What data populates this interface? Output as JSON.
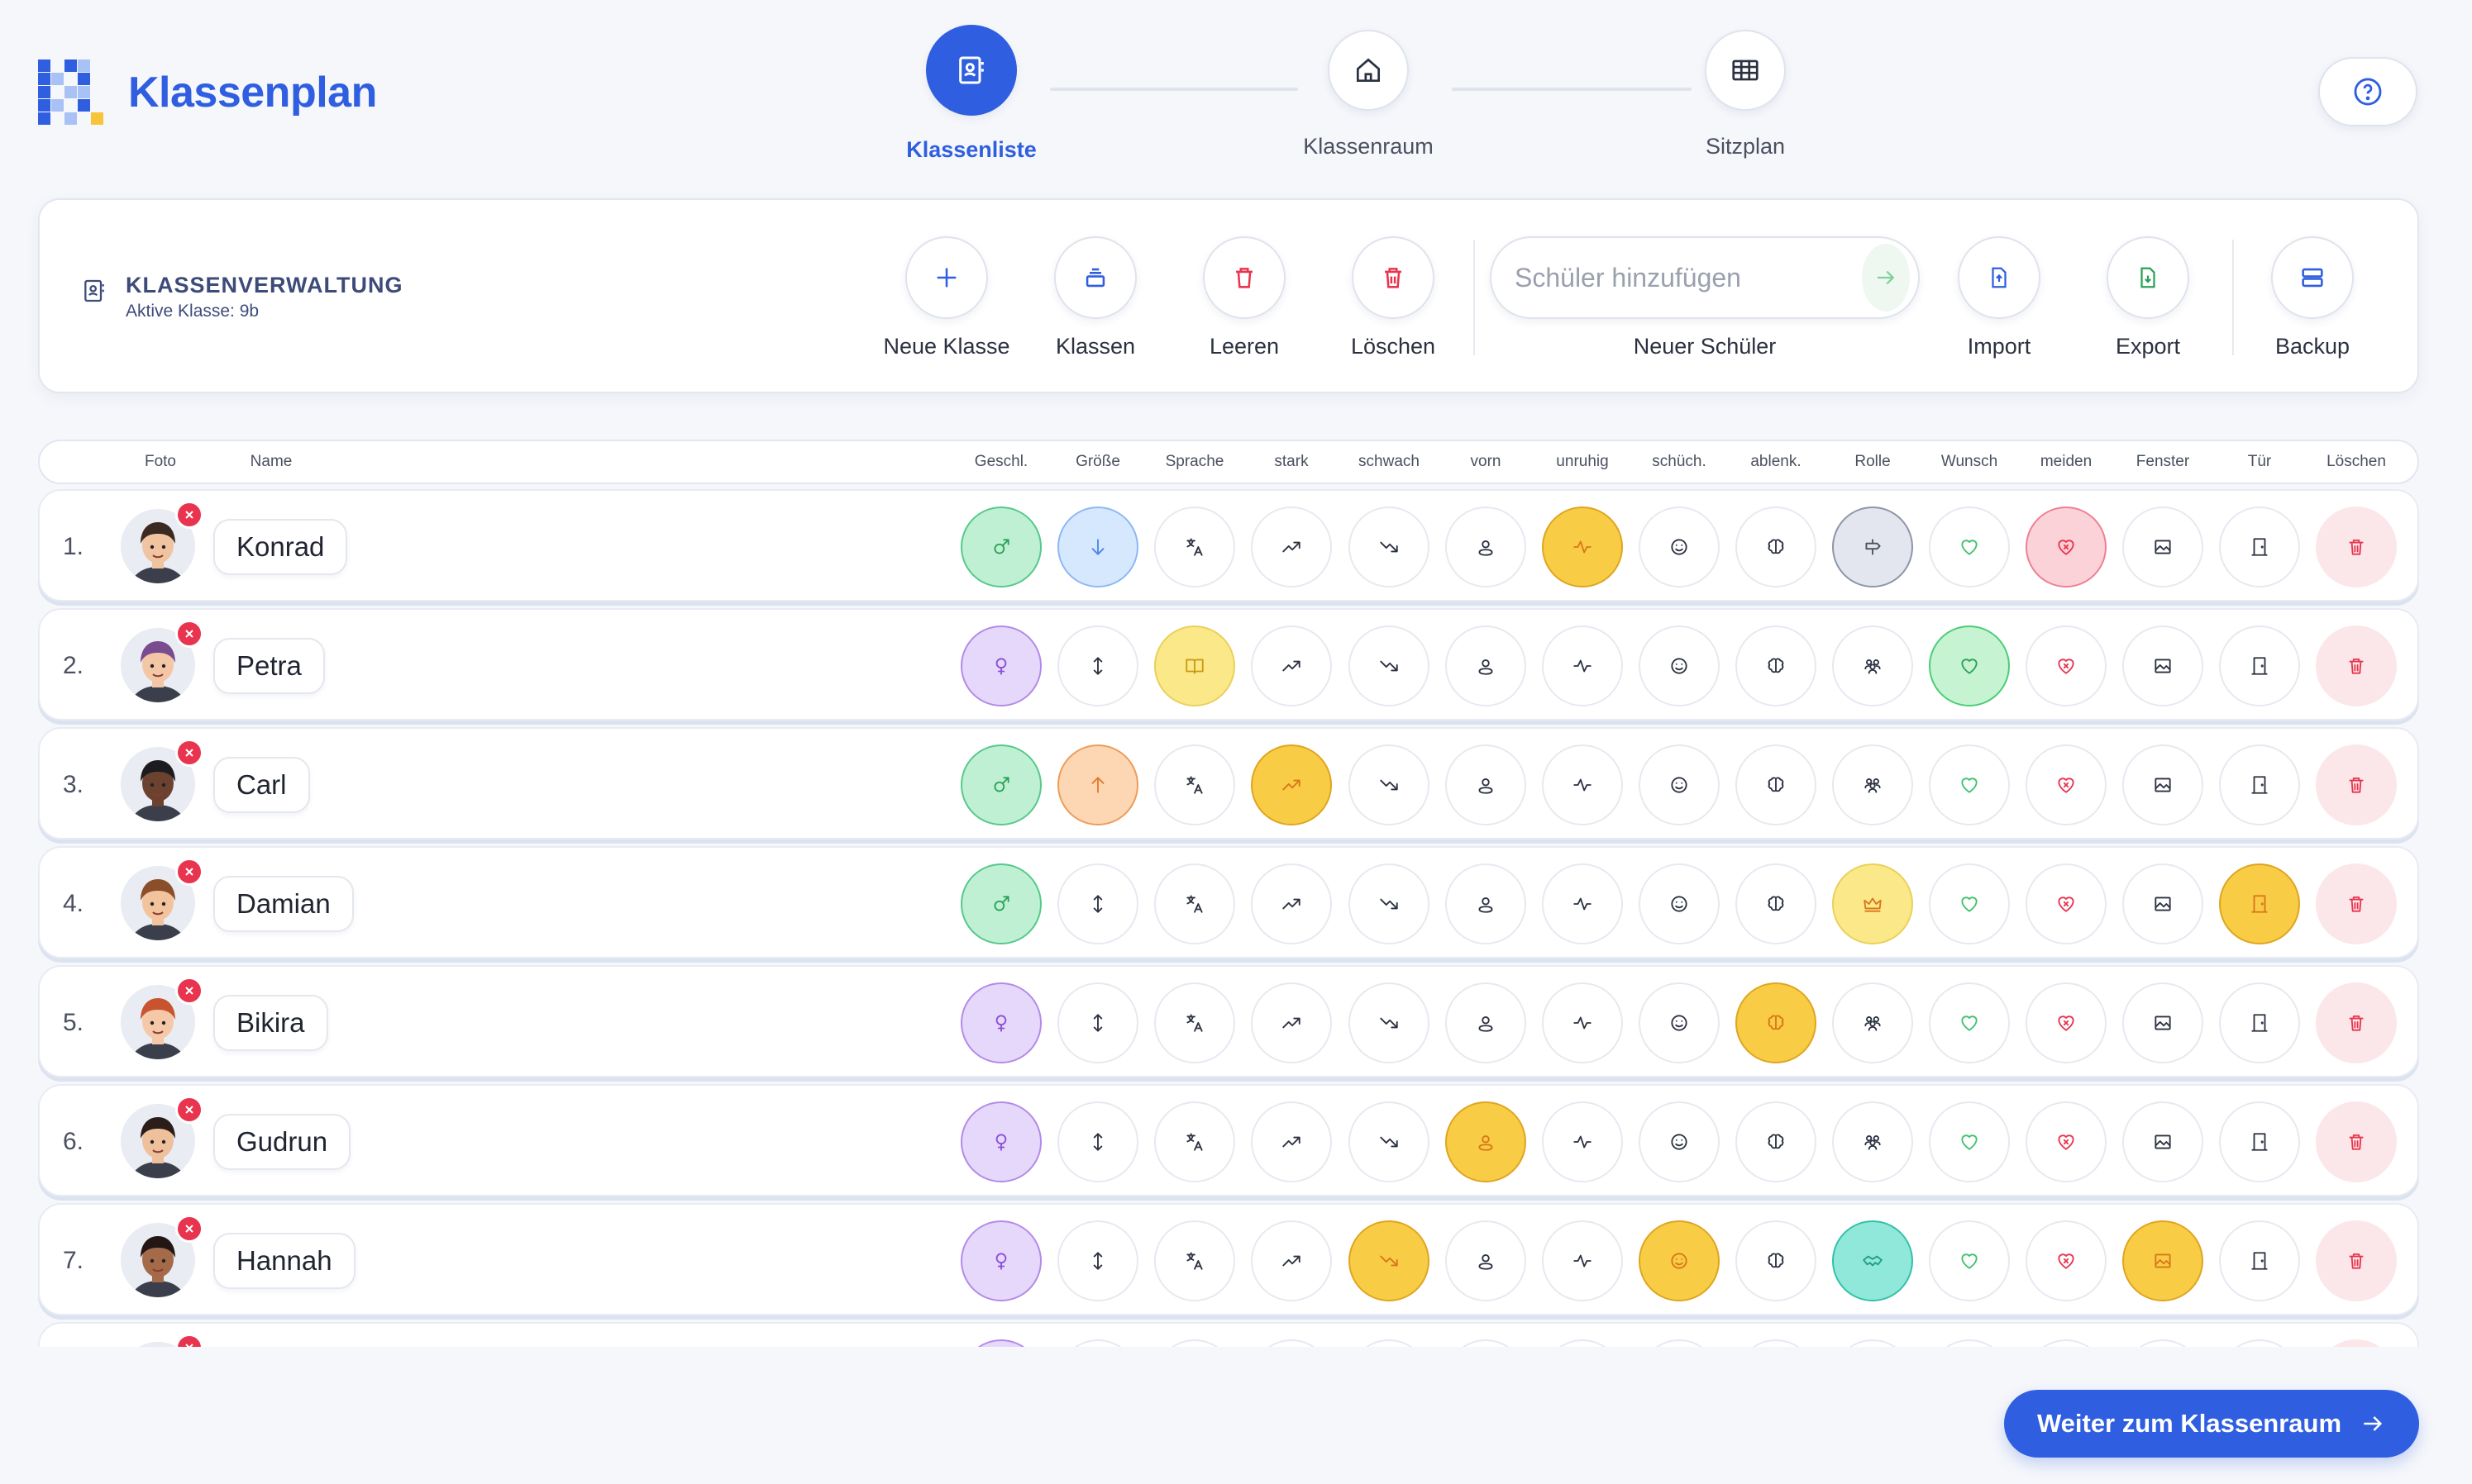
{
  "app": {
    "title": "Klassenplan"
  },
  "steps": [
    {
      "label": "Klassenliste",
      "icon": "contact-card-icon",
      "active": true
    },
    {
      "label": "Klassenraum",
      "icon": "home-icon",
      "active": false
    },
    {
      "label": "Sitzplan",
      "icon": "table-grid-icon",
      "active": false
    }
  ],
  "help": {
    "icon": "help-icon"
  },
  "management": {
    "title": "KLASSENVERWALTUNG",
    "subtitle": "Aktive Klasse: 9b",
    "tools": {
      "new_class": "Neue Klasse",
      "classes": "Klassen",
      "clear": "Leeren",
      "delete": "Löschen",
      "new_student": "Neuer Schüler",
      "import": "Import",
      "export": "Export",
      "backup": "Backup"
    },
    "add_student_placeholder": "Schüler hinzufügen"
  },
  "columns": {
    "photo": "Foto",
    "name": "Name",
    "attrs": [
      "Geschl.",
      "Größe",
      "Sprache",
      "stark",
      "schwach",
      "vorn",
      "unruhig",
      "schüch.",
      "ablenk.",
      "Rolle",
      "Wunsch",
      "meiden",
      "Fenster",
      "Tür",
      "Löschen"
    ]
  },
  "students": [
    {
      "num": "1.",
      "name": "Konrad",
      "gender": "male",
      "size": "small",
      "sprache": false,
      "stark": false,
      "schwach": false,
      "vorn": false,
      "unruhig": true,
      "schuech": false,
      "ablenk": false,
      "rolle": "gray",
      "wunsch": false,
      "meiden": true,
      "fenster": false,
      "tuer": false
    },
    {
      "num": "2.",
      "name": "Petra",
      "gender": "female",
      "size": "none",
      "sprache": true,
      "stark": false,
      "schwach": false,
      "vorn": false,
      "unruhig": false,
      "schuech": false,
      "ablenk": false,
      "rolle": "none",
      "wunsch": true,
      "meiden": false,
      "fenster": false,
      "tuer": false
    },
    {
      "num": "3.",
      "name": "Carl",
      "gender": "male",
      "size": "tall",
      "sprache": false,
      "stark": true,
      "schwach": false,
      "vorn": false,
      "unruhig": false,
      "schuech": false,
      "ablenk": false,
      "rolle": "none",
      "wunsch": false,
      "meiden": false,
      "fenster": false,
      "tuer": false
    },
    {
      "num": "4.",
      "name": "Damian",
      "gender": "male",
      "size": "none",
      "sprache": false,
      "stark": false,
      "schwach": false,
      "vorn": false,
      "unruhig": false,
      "schuech": false,
      "ablenk": false,
      "rolle": "crown",
      "wunsch": false,
      "meiden": false,
      "fenster": false,
      "tuer": true
    },
    {
      "num": "5.",
      "name": "Bikira",
      "gender": "female",
      "size": "none",
      "sprache": false,
      "stark": false,
      "schwach": false,
      "vorn": false,
      "unruhig": false,
      "schuech": false,
      "ablenk": true,
      "rolle": "none",
      "wunsch": false,
      "meiden": false,
      "fenster": false,
      "tuer": false
    },
    {
      "num": "6.",
      "name": "Gudrun",
      "gender": "female",
      "size": "none",
      "sprache": false,
      "stark": false,
      "schwach": false,
      "vorn": true,
      "unruhig": false,
      "schuech": false,
      "ablenk": false,
      "rolle": "none",
      "wunsch": false,
      "meiden": false,
      "fenster": false,
      "tuer": false
    },
    {
      "num": "7.",
      "name": "Hannah",
      "gender": "female",
      "size": "none",
      "sprache": false,
      "stark": false,
      "schwach": true,
      "vorn": false,
      "unruhig": false,
      "schuech": true,
      "ablenk": false,
      "rolle": "teal",
      "wunsch": false,
      "meiden": false,
      "fenster": true,
      "tuer": false
    },
    {
      "num": "",
      "name": "",
      "gender": "female",
      "size": "none",
      "sprache": false,
      "stark": false,
      "schwach": false,
      "vorn": false,
      "unruhig": false,
      "schuech": false,
      "ablenk": false,
      "rolle": "none",
      "wunsch": false,
      "meiden": false,
      "fenster": false,
      "tuer": false
    }
  ],
  "cta": {
    "label": "Weiter zum Klassenraum"
  },
  "colors": {
    "brand": "#2f5fe0",
    "accent_yellow": "#f8cc45",
    "delete_red": "#e8344e"
  }
}
